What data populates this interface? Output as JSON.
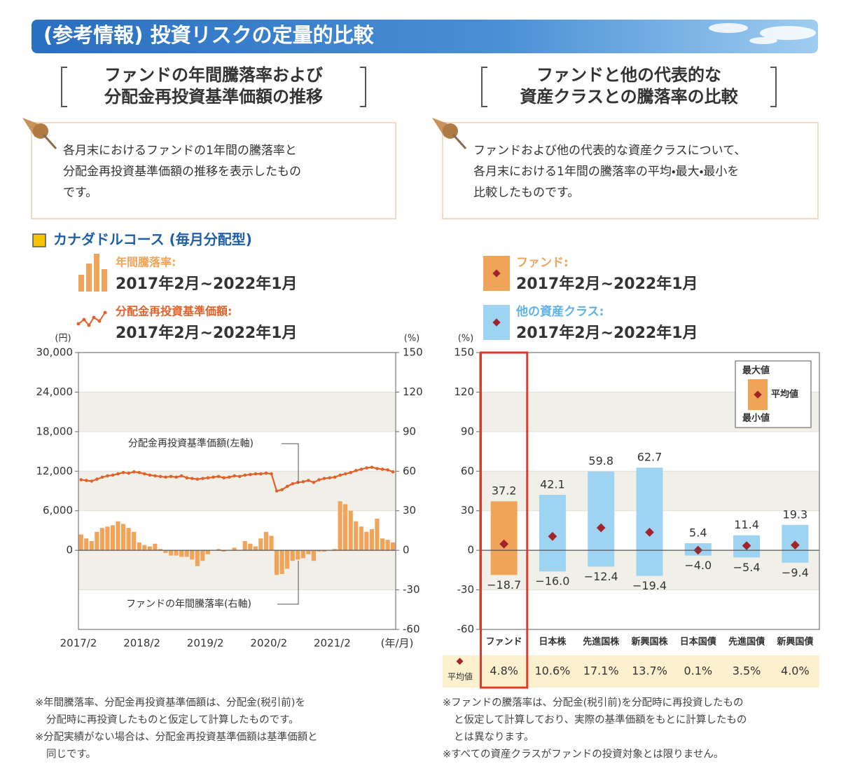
{
  "header": {
    "title": "(参考情報) 投資リスクの定量的比較"
  },
  "left": {
    "heading": [
      "ファンドの年間騰落率および",
      "分配金再投資基準価額の推移"
    ],
    "description": [
      "各月末におけるファンドの1年間の騰落率と",
      "分配金再投資基準価額の推移を表示したもの",
      "です。"
    ],
    "course": "カナダドルコース (毎月分配型)",
    "notes": [
      [
        "※年間騰落率、分配金再投資基準価額は、分配金(税引前)を",
        "分配時に再投資したものと仮定して計算したものです。"
      ],
      [
        "※分配実績がない場合は、分配金再投資基準価額は基準価額と",
        "同じです。"
      ]
    ]
  },
  "right": {
    "heading": [
      "ファンドと他の代表的な",
      "資産クラスとの騰落率の比較"
    ],
    "description": [
      "ファンドおよび他の代表的な資産クラスについて、",
      "各月末における1年間の騰落率の平均・最大・最小を",
      "比較したものです。"
    ],
    "notes": [
      [
        "※ファンドの騰落率は、分配金(税引前)を分配時に再投資したもの",
        "と仮定して計算しており、実際の基準価額をもとに計算したもの",
        "とは異なります。"
      ],
      [
        "※すべての資産クラスがファンドの投資対象とは限りません。"
      ]
    ]
  },
  "chart_data": [
    {
      "type": "bar-line",
      "y_unit": "(円)",
      "y2_unit": "(%)",
      "x_unit": "(年/月)",
      "categories": [
        "2017/2",
        null,
        null,
        null,
        null,
        null,
        null,
        null,
        null,
        null,
        null,
        null,
        "2018/2",
        null,
        null,
        null,
        null,
        null,
        null,
        null,
        null,
        null,
        null,
        null,
        "2019/2",
        null,
        null,
        null,
        null,
        null,
        null,
        null,
        null,
        null,
        null,
        null,
        "2020/2",
        null,
        null,
        null,
        null,
        null,
        null,
        null,
        null,
        null,
        null,
        null,
        "2021/2",
        null,
        null,
        null,
        null,
        null,
        null,
        null,
        null,
        null,
        null,
        null
      ],
      "series": [
        {
          "name": "年間騰落率:",
          "period": "2017年2月~2022年1月",
          "type": "bar",
          "axis": "y2",
          "color": "#f0a45a",
          "annotation": "ファンドの年間騰落率(右軸)",
          "values": [
            12,
            9,
            7,
            14,
            17,
            18,
            19,
            22,
            20,
            17,
            14,
            6,
            4,
            3,
            5,
            1,
            -2,
            -4,
            -4,
            -5,
            -5,
            -7,
            -12,
            -8,
            -3,
            0,
            1,
            -1,
            0,
            2,
            0,
            7,
            5,
            3,
            9,
            14,
            11,
            -18.7,
            -18,
            -14,
            -8,
            -7,
            -6,
            -3,
            -8,
            -1,
            -1,
            0,
            1,
            37.2,
            35,
            30,
            22,
            18,
            14,
            16,
            24,
            9,
            8,
            6
          ]
        },
        {
          "name": "分配金再投資基準価額:",
          "period": "2017年2月~2022年1月",
          "type": "line",
          "color": "#e0622a",
          "annotation": "分配金再投資基準価額(左軸)",
          "values": [
            10700,
            10600,
            10500,
            10800,
            11100,
            11300,
            11400,
            11600,
            11800,
            11700,
            11900,
            11800,
            11600,
            11400,
            11300,
            11200,
            11100,
            11200,
            11100,
            11300,
            11000,
            10900,
            10800,
            10900,
            11000,
            11100,
            11200,
            11000,
            11100,
            11300,
            11200,
            11400,
            11500,
            11600,
            11600,
            11700,
            11600,
            9000,
            9200,
            9700,
            10100,
            10300,
            10400,
            10600,
            10300,
            10700,
            10900,
            11000,
            11100,
            11400,
            11600,
            11800,
            12100,
            12300,
            12500,
            12600,
            12400,
            12300,
            12200,
            11900
          ]
        }
      ],
      "ylim": [
        -12000,
        30000
      ],
      "yticks": [
        {
          "value": 0,
          "label": "0"
        },
        {
          "value": 6000,
          "label": "6,000"
        },
        {
          "value": 12000,
          "label": "12,000"
        },
        {
          "value": 18000,
          "label": "18,000"
        },
        {
          "value": 24000,
          "label": "24,000"
        },
        {
          "value": 30000,
          "label": "30,000"
        }
      ],
      "y2lim": [
        -60,
        150
      ],
      "y2ticks": [
        -60,
        -30,
        0,
        30,
        60,
        90,
        120,
        150
      ],
      "grid": true
    },
    {
      "type": "range",
      "y_unit": "(%)",
      "categories": [
        "ファンド",
        "日本株",
        "先進国株",
        "新興国株",
        "日本国債",
        "先進国債",
        "新興国債"
      ],
      "legend": [
        {
          "name": "ファンド:",
          "period": "2017年2月~2022年1月",
          "color": "#f0a45a"
        },
        {
          "name": "他の資産クラス:",
          "period": "2017年2月~2022年1月",
          "color": "#9fd3f2"
        }
      ],
      "max": [
        37.2,
        42.1,
        59.8,
        62.7,
        5.4,
        11.4,
        19.3
      ],
      "min": [
        -18.7,
        -16.0,
        -12.4,
        -19.4,
        -4.0,
        -5.4,
        -9.4
      ],
      "min_labels": [
        "−18.7",
        "−16.0",
        "−12.4",
        "−19.4",
        "−4.0",
        "−5.4",
        "−9.4"
      ],
      "mean": [
        4.8,
        10.6,
        17.1,
        13.7,
        0.1,
        3.5,
        4.0
      ],
      "mean_labels": [
        "4.8%",
        "10.6%",
        "17.1%",
        "13.7%",
        "0.1%",
        "3.5%",
        "4.0%"
      ],
      "mean_row_label": "平均値",
      "mean_color": "#a0242a",
      "range_legend": [
        "最大値",
        "平均値",
        "最小値"
      ],
      "ylim": [
        -60,
        150
      ],
      "yticks": [
        -60,
        -30,
        0,
        30,
        60,
        90,
        120,
        150
      ],
      "grid": true
    }
  ]
}
